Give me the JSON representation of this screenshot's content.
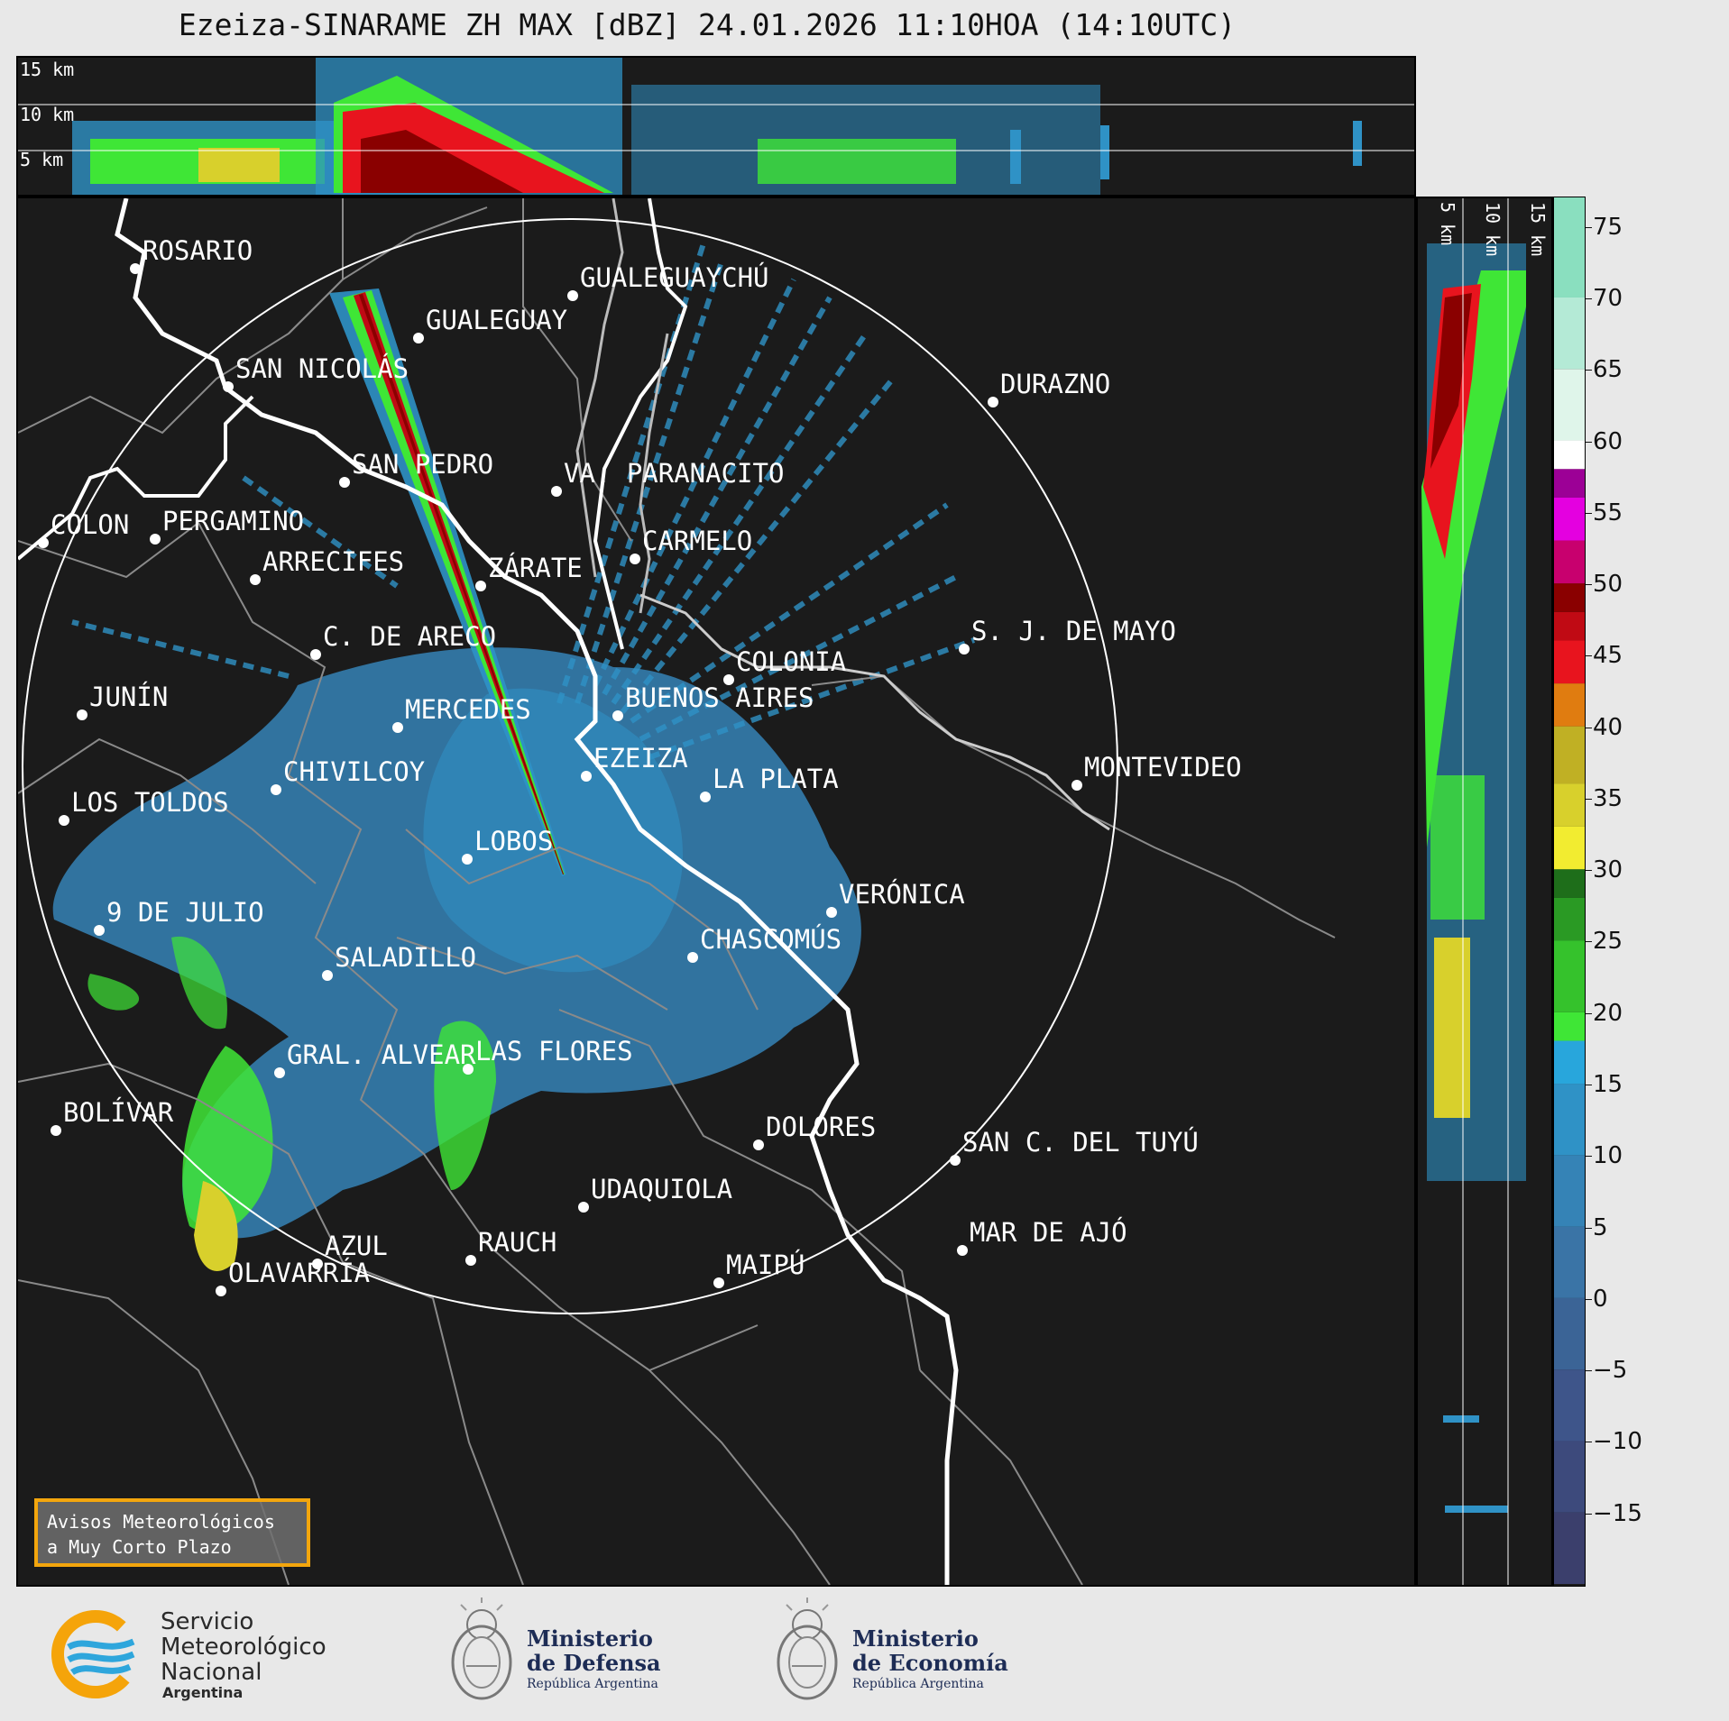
{
  "title": "Ezeiza-SINARAME ZH MAX [dBZ] 24.01.2026 11:10HOA (14:10UTC)",
  "height_labels": [
    "15 km",
    "10 km",
    "5 km"
  ],
  "cities": [
    {
      "name": "ROSARIO"
    },
    {
      "name": "GUALEGUAYCHÚ"
    },
    {
      "name": "GUALEGUAY"
    },
    {
      "name": "SAN NICOLÁS"
    },
    {
      "name": "DURAZNO"
    },
    {
      "name": "SAN PEDRO"
    },
    {
      "name": "VA. PARANACITO"
    },
    {
      "name": "COLON"
    },
    {
      "name": "PERGAMINO"
    },
    {
      "name": "CARMELO"
    },
    {
      "name": "ARRECIFES"
    },
    {
      "name": "ZÁRATE"
    },
    {
      "name": "S. J. DE MAYO"
    },
    {
      "name": "C. DE ARECO"
    },
    {
      "name": "COLONIA"
    },
    {
      "name": "JUNÍN"
    },
    {
      "name": "BUENOS AIRES"
    },
    {
      "name": "MERCEDES"
    },
    {
      "name": "EZEIZA"
    },
    {
      "name": "MONTEVIDEO"
    },
    {
      "name": "CHIVILCOY"
    },
    {
      "name": "LA PLATA"
    },
    {
      "name": "LOS TOLDOS"
    },
    {
      "name": "LOBOS"
    },
    {
      "name": "VERÓNICA"
    },
    {
      "name": "9 DE JULIO"
    },
    {
      "name": "CHASCOMÚS"
    },
    {
      "name": "SALADILLO"
    },
    {
      "name": "GRAL. ALVEAR"
    },
    {
      "name": "LAS FLORES"
    },
    {
      "name": "BOLÍVAR"
    },
    {
      "name": "DOLORES"
    },
    {
      "name": "SAN C. DEL TUYÚ"
    },
    {
      "name": "UDAQUIOLA"
    },
    {
      "name": "AZUL"
    },
    {
      "name": "RAUCH"
    },
    {
      "name": "MAR DE AJÓ"
    },
    {
      "name": "MAIPÚ"
    },
    {
      "name": "OLAVARRÍA"
    }
  ],
  "colorbar": {
    "unit": "dBZ",
    "range": [
      -20,
      77
    ],
    "ticks": [
      75,
      70,
      65,
      60,
      55,
      50,
      45,
      40,
      35,
      30,
      25,
      20,
      15,
      10,
      5,
      0,
      -5,
      -10,
      -15
    ],
    "tick_labels": [
      "75",
      "70",
      "65",
      "60",
      "55",
      "50",
      "45",
      "40",
      "35",
      "30",
      "25",
      "20",
      "15",
      "10",
      "5",
      "0",
      "−5",
      "−10",
      "−15"
    ],
    "stops": [
      {
        "from": -20,
        "to": -15,
        "color": "#3b3f6c"
      },
      {
        "from": -15,
        "to": -10,
        "color": "#3d4a7c"
      },
      {
        "from": -10,
        "to": -5,
        "color": "#3e558a"
      },
      {
        "from": -5,
        "to": 0,
        "color": "#3b6496"
      },
      {
        "from": 0,
        "to": 5,
        "color": "#3a74a6"
      },
      {
        "from": 5,
        "to": 10,
        "color": "#3583b6"
      },
      {
        "from": 10,
        "to": 15,
        "color": "#2f92c6"
      },
      {
        "from": 15,
        "to": 18,
        "color": "#28a6dc"
      },
      {
        "from": 18,
        "to": 20,
        "color": "#3fe636"
      },
      {
        "from": 20,
        "to": 25,
        "color": "#35c22c"
      },
      {
        "from": 25,
        "to": 28,
        "color": "#2a9a24"
      },
      {
        "from": 28,
        "to": 30,
        "color": "#1e6e1a"
      },
      {
        "from": 30,
        "to": 33,
        "color": "#f2ec30"
      },
      {
        "from": 33,
        "to": 36,
        "color": "#d8d02c"
      },
      {
        "from": 36,
        "to": 40,
        "color": "#c0b024"
      },
      {
        "from": 40,
        "to": 43,
        "color": "#e07c10"
      },
      {
        "from": 43,
        "to": 46,
        "color": "#e8141e"
      },
      {
        "from": 46,
        "to": 48,
        "color": "#c00a14"
      },
      {
        "from": 48,
        "to": 50,
        "color": "#8a0000"
      },
      {
        "from": 50,
        "to": 53,
        "color": "#c8006e"
      },
      {
        "from": 53,
        "to": 56,
        "color": "#e400e0"
      },
      {
        "from": 56,
        "to": 58,
        "color": "#9c0096"
      },
      {
        "from": 58,
        "to": 60,
        "color": "#ffffff"
      },
      {
        "from": 60,
        "to": 65,
        "color": "#dff5ea"
      },
      {
        "from": 65,
        "to": 70,
        "color": "#b4ead6"
      },
      {
        "from": 70,
        "to": 77,
        "color": "#8adfbf"
      }
    ]
  },
  "warning_box": {
    "line1": "Avisos Meteorológicos",
    "line2": "a Muy Corto Plazo"
  },
  "logos": {
    "smn": {
      "line1": "Servicio",
      "line2": "Meteorológico",
      "line3": "Nacional",
      "line4": "Argentina"
    },
    "defensa": {
      "line1": "Ministerio",
      "line2": "de Defensa",
      "line3": "República Argentina"
    },
    "economia": {
      "line1": "Ministerio",
      "line2": "de Economía",
      "line3": "República Argentina"
    }
  }
}
